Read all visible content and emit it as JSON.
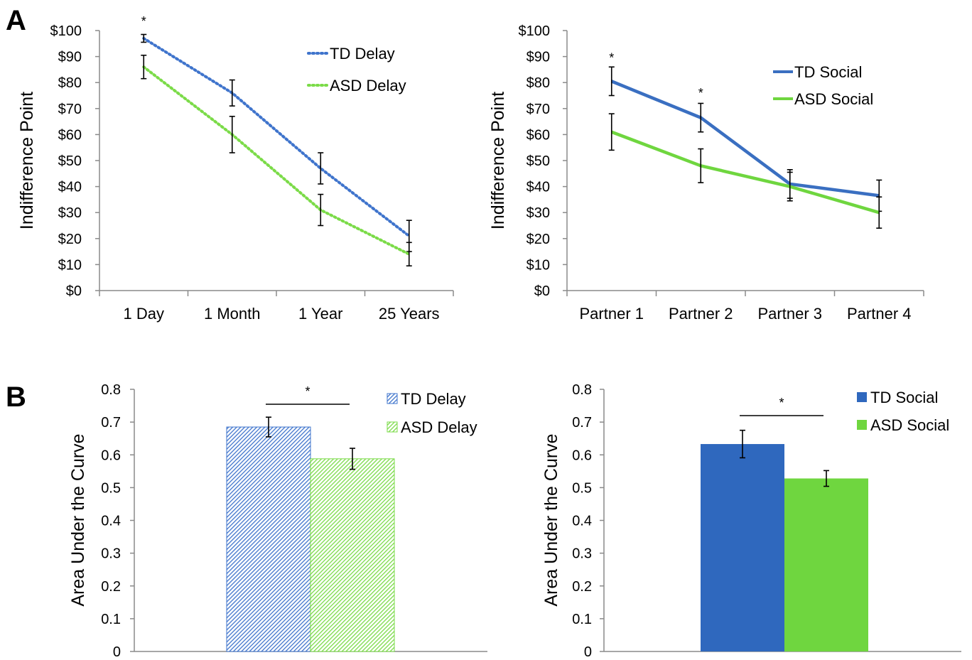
{
  "panels": {
    "a": "A",
    "b": "B"
  },
  "colors": {
    "td": "#3a6fc1",
    "asd": "#6fd63f",
    "td_dotted": "#3f74cc",
    "asd_dotted": "#7bdb48",
    "axis": "#8a8a8a",
    "error": "#000000"
  },
  "chart_data": [
    {
      "type": "line",
      "style": "dotted",
      "ylabel": "Indifference Point",
      "ylim": [
        0,
        100
      ],
      "yticks": [
        "$0",
        "$10",
        "$20",
        "$30",
        "$40",
        "$50",
        "$60",
        "$70",
        "$80",
        "$90",
        "$100"
      ],
      "categories": [
        "1 Day",
        "1 Month",
        "1 Year",
        "25 Years"
      ],
      "series": [
        {
          "name": "TD Delay",
          "color": "#3f74cc",
          "values": [
            97,
            76,
            47,
            21
          ],
          "errors": [
            1.5,
            5,
            6,
            6
          ]
        },
        {
          "name": "ASD Delay",
          "color": "#7bdb48",
          "values": [
            86,
            60,
            31,
            14
          ],
          "errors": [
            4.5,
            7,
            6,
            4.5
          ]
        }
      ],
      "annotations": [
        {
          "text": "*",
          "category": 0,
          "value": 103.5
        }
      ],
      "legend": "top-right"
    },
    {
      "type": "line",
      "style": "solid",
      "ylabel": "Indifference Point",
      "ylim": [
        0,
        100
      ],
      "yticks": [
        "$0",
        "$10",
        "$20",
        "$30",
        "$40",
        "$50",
        "$60",
        "$70",
        "$80",
        "$90",
        "$100"
      ],
      "categories": [
        "Partner 1",
        "Partner 2",
        "Partner 3",
        "Partner 4"
      ],
      "series": [
        {
          "name": "TD Social",
          "color": "#3a6fc1",
          "values": [
            80.5,
            66.5,
            41,
            36.5
          ],
          "errors": [
            5.5,
            5.5,
            5.5,
            6
          ]
        },
        {
          "name": "ASD Social",
          "color": "#6fd63f",
          "values": [
            61,
            48,
            40,
            30
          ],
          "errors": [
            7,
            6.5,
            5.5,
            6
          ]
        }
      ],
      "annotations": [
        {
          "text": "*",
          "category": 0,
          "value": 89.5
        },
        {
          "text": "*",
          "category": 1,
          "value": 76
        }
      ],
      "legend": "top-right"
    },
    {
      "type": "bar",
      "pattern": "hatched",
      "ylabel": "Area Under the Curve",
      "ylim": [
        0,
        0.8
      ],
      "yticks": [
        "0",
        "0.1",
        "0.2",
        "0.3",
        "0.4",
        "0.5",
        "0.6",
        "0.7",
        "0.8"
      ],
      "series": [
        {
          "name": "TD Delay",
          "color": "#3f74cc",
          "value": 0.685,
          "error": 0.03
        },
        {
          "name": "ASD Delay",
          "color": "#7bdb48",
          "value": 0.588,
          "error": 0.032
        }
      ],
      "significance": "*",
      "legend": "top-right"
    },
    {
      "type": "bar",
      "pattern": "solid",
      "ylabel": "Area Under the Curve",
      "ylim": [
        0,
        0.8
      ],
      "yticks": [
        "0",
        "0.1",
        "0.2",
        "0.3",
        "0.4",
        "0.5",
        "0.6",
        "0.7",
        "0.8"
      ],
      "series": [
        {
          "name": "TD Social",
          "color": "#2f68be",
          "value": 0.633,
          "error": 0.042
        },
        {
          "name": "ASD Social",
          "color": "#6fd63f",
          "value": 0.528,
          "error": 0.024
        }
      ],
      "significance": "*",
      "legend": "top-right"
    }
  ]
}
